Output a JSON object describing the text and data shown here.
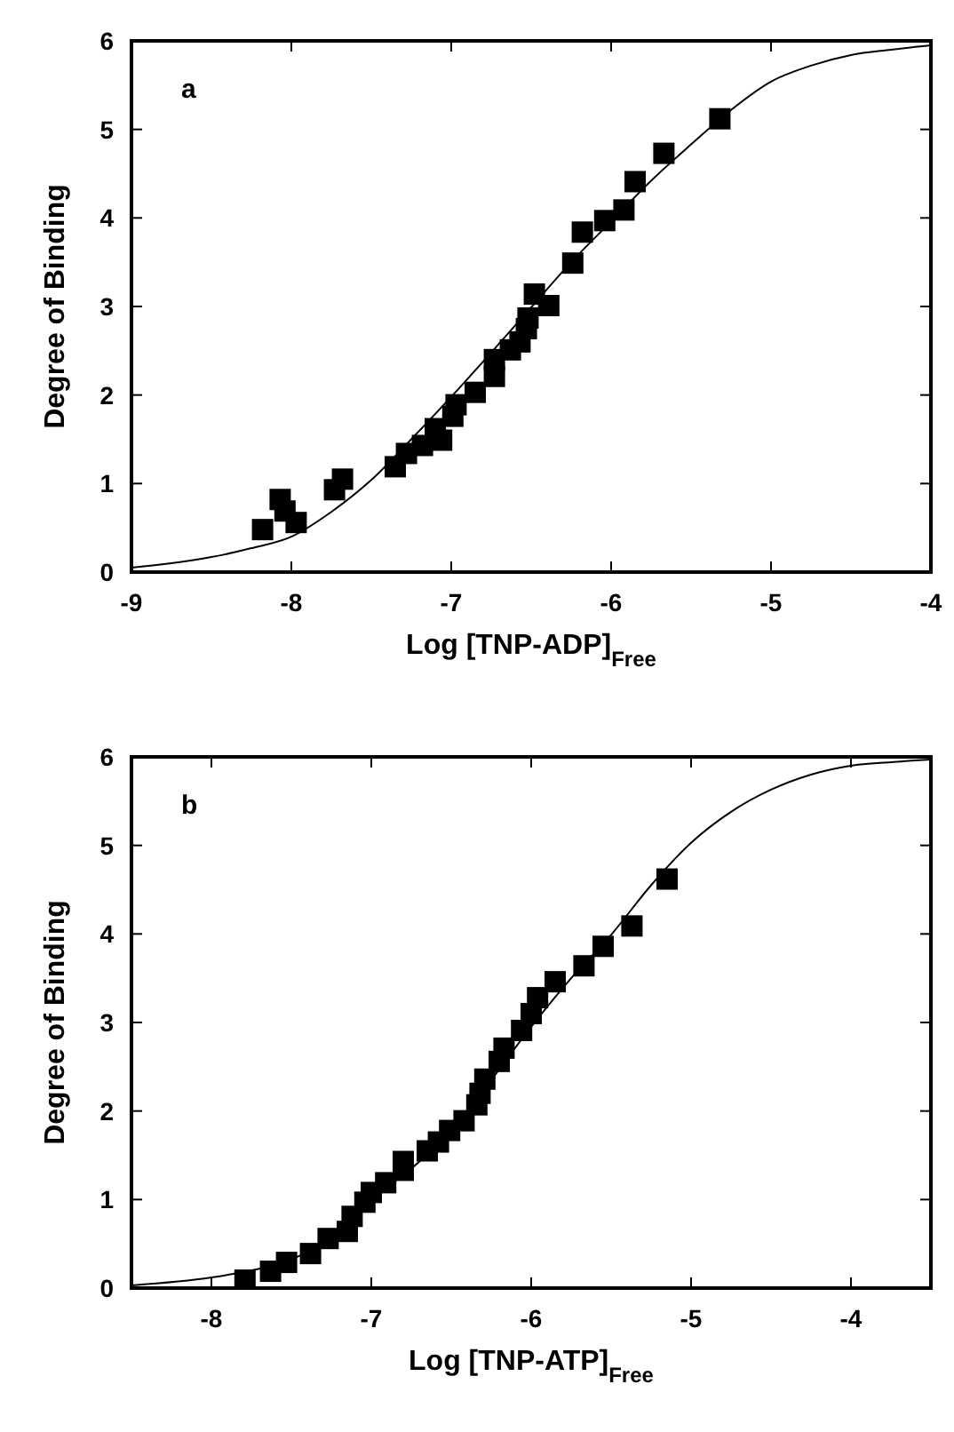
{
  "chart_data": [
    {
      "type": "scatter",
      "xlabel": "Log  [TNP-ADP]$_{Free}$",
      "ylabel": "Degree of Binding",
      "annotations": [
        "a"
      ],
      "xlim": [
        -9,
        -4
      ],
      "ylim": [
        0,
        6
      ],
      "xticks": [
        -9,
        -8,
        -7,
        -6,
        -5,
        -4
      ],
      "yticks": [
        0,
        1,
        2,
        3,
        4,
        5,
        6
      ],
      "series": [
        {
          "marker": "square",
          "color": "#000000",
          "x": [
            -8.18,
            -8.07,
            -8.04,
            -7.97,
            -7.73,
            -7.68,
            -7.35,
            -7.28,
            -7.18,
            -7.1,
            -7.06,
            -6.99,
            -6.97,
            -6.85,
            -6.73,
            -6.73,
            -6.63,
            -6.57,
            -6.53,
            -6.52,
            -6.48,
            -6.39,
            -6.24,
            -6.18,
            -6.04,
            -5.92,
            -5.85,
            -5.67,
            -5.32
          ],
          "values": [
            0.48,
            0.82,
            0.69,
            0.56,
            0.93,
            1.05,
            1.19,
            1.34,
            1.43,
            1.62,
            1.49,
            1.76,
            1.89,
            2.03,
            2.21,
            2.4,
            2.51,
            2.6,
            2.75,
            2.87,
            3.14,
            3.01,
            3.49,
            3.84,
            3.97,
            4.09,
            4.41,
            4.73,
            5.12
          ]
        },
        {
          "type": "line",
          "color": "#000000",
          "x": [
            -9,
            -8.75,
            -8.5,
            -8.25,
            -8,
            -7.75,
            -7.5,
            -7.25,
            -7,
            -6.75,
            -6.5,
            -6.25,
            -6,
            -5.75,
            -5.5,
            -5.25,
            -5,
            -4.75,
            -4.5,
            -4.25,
            -4
          ],
          "values": [
            0.05,
            0.1,
            0.17,
            0.27,
            0.4,
            0.68,
            1.04,
            1.5,
            1.98,
            2.48,
            2.99,
            3.5,
            3.96,
            4.42,
            4.83,
            5.22,
            5.54,
            5.72,
            5.84,
            5.9,
            5.95
          ]
        }
      ]
    },
    {
      "type": "scatter",
      "xlabel": "Log  [TNP-ATP]$_{Free}$",
      "ylabel": "Degree of Binding",
      "annotations": [
        "b"
      ],
      "xlim": [
        -8.5,
        -3.5
      ],
      "ylim": [
        0,
        6
      ],
      "xticks": [
        -8,
        -7,
        -6,
        -5,
        -4
      ],
      "yticks": [
        0,
        1,
        2,
        3,
        4,
        5,
        6
      ],
      "series": [
        {
          "marker": "square",
          "color": "#000000",
          "x": [
            -7.79,
            -7.63,
            -7.53,
            -7.38,
            -7.27,
            -7.15,
            -7.12,
            -7.04,
            -7.0,
            -6.91,
            -6.8,
            -6.8,
            -6.65,
            -6.58,
            -6.51,
            -6.42,
            -6.34,
            -6.32,
            -6.29,
            -6.2,
            -6.17,
            -6.06,
            -6.0,
            -5.96,
            -5.85,
            -5.67,
            -5.55,
            -5.37,
            -5.15
          ],
          "values": [
            0.09,
            0.19,
            0.29,
            0.39,
            0.56,
            0.64,
            0.81,
            0.97,
            1.08,
            1.19,
            1.33,
            1.43,
            1.55,
            1.65,
            1.78,
            1.89,
            2.07,
            2.2,
            2.36,
            2.56,
            2.71,
            2.91,
            3.1,
            3.28,
            3.46,
            3.64,
            3.86,
            4.09,
            4.62
          ]
        },
        {
          "type": "line",
          "color": "#000000",
          "x": [
            -8.5,
            -8,
            -7.75,
            -7.5,
            -7.25,
            -7,
            -6.75,
            -6.5,
            -6.25,
            -6,
            -5.75,
            -5.5,
            -5.25,
            -5,
            -4.75,
            -4.5,
            -4.25,
            -4,
            -3.75,
            -3.5
          ],
          "values": [
            0.03,
            0.12,
            0.2,
            0.32,
            0.6,
            1.0,
            1.35,
            1.77,
            2.35,
            2.95,
            3.5,
            3.99,
            4.55,
            5.03,
            5.38,
            5.63,
            5.8,
            5.9,
            5.94,
            5.97
          ]
        }
      ]
    }
  ]
}
